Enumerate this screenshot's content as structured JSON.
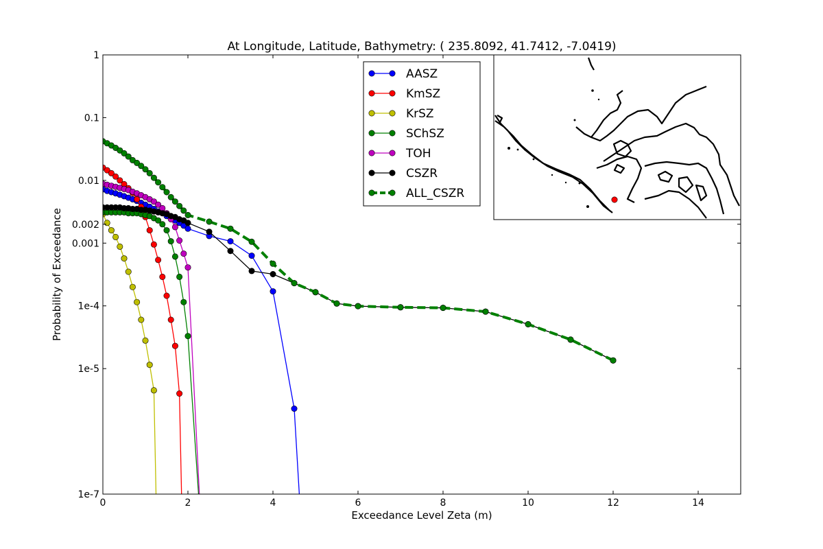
{
  "chart_data": {
    "type": "line",
    "title": "At Longitude, Latitude, Bathymetry:  ( 235.8092,  41.7412,  -7.0419)",
    "xlabel": "Exceedance Level Zeta (m)",
    "ylabel": "Probability of Exceedance",
    "xlim": [
      0,
      15
    ],
    "ylim": [
      1e-07,
      1
    ],
    "yscale": "log",
    "grid": false,
    "legend_position": "top-center",
    "xticks": [
      0,
      2,
      4,
      6,
      8,
      10,
      12,
      14
    ],
    "xtick_labels": [
      "0",
      "2",
      "4",
      "6",
      "8",
      "10",
      "12",
      "14"
    ],
    "yticks": [
      1e-07,
      1e-05,
      0.0001,
      0.001,
      0.002,
      0.01,
      0.1,
      1
    ],
    "ytick_labels": [
      "1e-7",
      "1e-5",
      "1e-4",
      "0.001",
      "0.002",
      "0.01",
      "0.1",
      "1"
    ],
    "series": [
      {
        "name": "AASZ",
        "color": "#0000ff",
        "style": "solid",
        "x": [
          0,
          0.1,
          0.2,
          0.3,
          0.4,
          0.5,
          0.6,
          0.7,
          0.8,
          0.9,
          1.0,
          1.1,
          1.2,
          1.3,
          1.4,
          1.5,
          1.6,
          1.7,
          1.8,
          1.9,
          2.0,
          2.5,
          3.0,
          3.5,
          4.0,
          4.5,
          4.62
        ],
        "y": [
          0.0072,
          0.0068,
          0.0065,
          0.0062,
          0.0059,
          0.0056,
          0.0053,
          0.005,
          0.0047,
          0.0044,
          0.0041,
          0.0038,
          0.0035,
          0.0032,
          0.003,
          0.0027,
          0.0025,
          0.0023,
          0.0021,
          0.0019,
          0.0017,
          0.0013,
          0.00107,
          0.00063,
          0.00017,
          2.3e-06,
          1e-07
        ]
      },
      {
        "name": "KmSZ",
        "color": "#ff0000",
        "style": "solid",
        "x": [
          0,
          0.1,
          0.2,
          0.3,
          0.4,
          0.5,
          0.6,
          0.7,
          0.8,
          0.9,
          1.0,
          1.1,
          1.2,
          1.3,
          1.4,
          1.5,
          1.6,
          1.7,
          1.8,
          1.85
        ],
        "y": [
          0.016,
          0.0145,
          0.013,
          0.0115,
          0.01,
          0.0087,
          0.0075,
          0.0063,
          0.005,
          0.0038,
          0.0026,
          0.0016,
          0.00095,
          0.00054,
          0.00029,
          0.000145,
          6e-05,
          2.3e-05,
          4e-06,
          1e-07
        ]
      },
      {
        "name": "KrSZ",
        "color": "#bfbf00",
        "style": "solid",
        "x": [
          0,
          0.1,
          0.2,
          0.3,
          0.4,
          0.5,
          0.6,
          0.7,
          0.8,
          0.9,
          1.0,
          1.1,
          1.2,
          1.25
        ],
        "y": [
          0.0029,
          0.0021,
          0.0016,
          0.00125,
          0.00088,
          0.00057,
          0.00035,
          0.0002,
          0.000115,
          6e-05,
          2.8e-05,
          1.15e-05,
          4.5e-06,
          1e-07
        ]
      },
      {
        "name": "SChSZ",
        "color": "#008000",
        "style": "solid",
        "x": [
          0,
          0.1,
          0.2,
          0.3,
          0.4,
          0.5,
          0.6,
          0.7,
          0.8,
          0.9,
          1.0,
          1.1,
          1.2,
          1.3,
          1.4,
          1.5,
          1.6,
          1.7,
          1.8,
          1.9,
          2.0,
          2.25
        ],
        "y": [
          0.0031,
          0.0031,
          0.0031,
          0.0031,
          0.0031,
          0.0031,
          0.003,
          0.003,
          0.003,
          0.0029,
          0.0028,
          0.0027,
          0.0025,
          0.0023,
          0.002,
          0.0016,
          0.00107,
          0.00061,
          0.00029,
          0.000115,
          3.3e-05,
          1e-07
        ]
      },
      {
        "name": "TOH",
        "color": "#bf00bf",
        "style": "solid",
        "x": [
          0,
          0.1,
          0.2,
          0.3,
          0.4,
          0.5,
          0.6,
          0.7,
          0.8,
          0.9,
          1.0,
          1.1,
          1.2,
          1.3,
          1.4,
          1.5,
          1.6,
          1.7,
          1.8,
          1.9,
          2.0,
          2.27
        ],
        "y": [
          0.0088,
          0.0085,
          0.0082,
          0.0079,
          0.0076,
          0.0073,
          0.007,
          0.0066,
          0.0062,
          0.0058,
          0.0054,
          0.005,
          0.0046,
          0.0041,
          0.0036,
          0.003,
          0.0024,
          0.0018,
          0.0011,
          0.00068,
          0.00041,
          1e-07
        ]
      },
      {
        "name": "CSZR",
        "color": "#000000",
        "style": "solid",
        "x": [
          0,
          0.1,
          0.2,
          0.3,
          0.4,
          0.5,
          0.6,
          0.7,
          0.8,
          0.9,
          1.0,
          1.1,
          1.2,
          1.3,
          1.4,
          1.5,
          1.6,
          1.7,
          1.8,
          1.9,
          2.0,
          2.5,
          3.0,
          3.5,
          4.0,
          4.5,
          5.0,
          5.5,
          6.0,
          7.0,
          8.0,
          9.0,
          10.0,
          11.0,
          12.0
        ],
        "y": [
          0.0037,
          0.0037,
          0.0037,
          0.0037,
          0.0037,
          0.0036,
          0.0036,
          0.0035,
          0.0035,
          0.0034,
          0.0034,
          0.0033,
          0.0032,
          0.0031,
          0.003,
          0.0029,
          0.0027,
          0.0026,
          0.0024,
          0.0023,
          0.0021,
          0.00152,
          0.00075,
          0.00036,
          0.00032,
          0.00023,
          0.000165,
          0.000109,
          9.9e-05,
          9.5e-05,
          9.3e-05,
          8.1e-05,
          5.1e-05,
          2.9e-05,
          1.35e-05
        ]
      },
      {
        "name": "ALL_CSZR",
        "color": "#008000",
        "style": "dashed",
        "x": [
          0,
          0.1,
          0.2,
          0.3,
          0.4,
          0.5,
          0.6,
          0.7,
          0.8,
          0.9,
          1.0,
          1.1,
          1.2,
          1.3,
          1.4,
          1.5,
          1.6,
          1.7,
          1.8,
          1.9,
          2.0,
          2.5,
          3.0,
          3.5,
          4.0,
          4.5,
          5.0,
          5.5,
          6.0,
          7.0,
          8.0,
          9.0,
          10.0,
          11.0,
          12.0
        ],
        "y": [
          0.042,
          0.039,
          0.036,
          0.033,
          0.03,
          0.027,
          0.024,
          0.021,
          0.019,
          0.017,
          0.015,
          0.013,
          0.011,
          0.0093,
          0.0078,
          0.0065,
          0.0054,
          0.0046,
          0.0039,
          0.0033,
          0.0028,
          0.0022,
          0.0017,
          0.00105,
          0.00047,
          0.00023,
          0.000165,
          0.000109,
          9.9e-05,
          9.5e-05,
          9.3e-05,
          8.1e-05,
          5.1e-05,
          2.9e-05,
          1.35e-05
        ]
      }
    ],
    "inset_map": {
      "type": "map",
      "marker_color": "#ff0000"
    }
  }
}
